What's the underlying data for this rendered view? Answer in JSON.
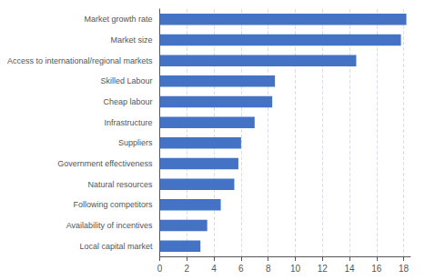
{
  "chart_data": {
    "type": "bar",
    "orientation": "horizontal",
    "categories": [
      "Local capital market",
      "Availability of incentives",
      "Following competitors",
      "Natural resources",
      "Government effectiveness",
      "Suppliers",
      "Infrastructure",
      "Cheap labour",
      "Skilled Labour",
      "Access to international/regional markets",
      "Market size",
      "Market growth rate"
    ],
    "values": [
      3.0,
      3.5,
      4.5,
      5.5,
      5.8,
      6.0,
      7.0,
      8.3,
      8.5,
      14.5,
      17.8,
      18.2
    ],
    "color": "#4472C4",
    "xlim": [
      0,
      18.5
    ],
    "xticks": [
      0,
      2,
      4,
      6,
      8,
      10,
      12,
      14,
      16,
      18
    ],
    "grid": true
  }
}
